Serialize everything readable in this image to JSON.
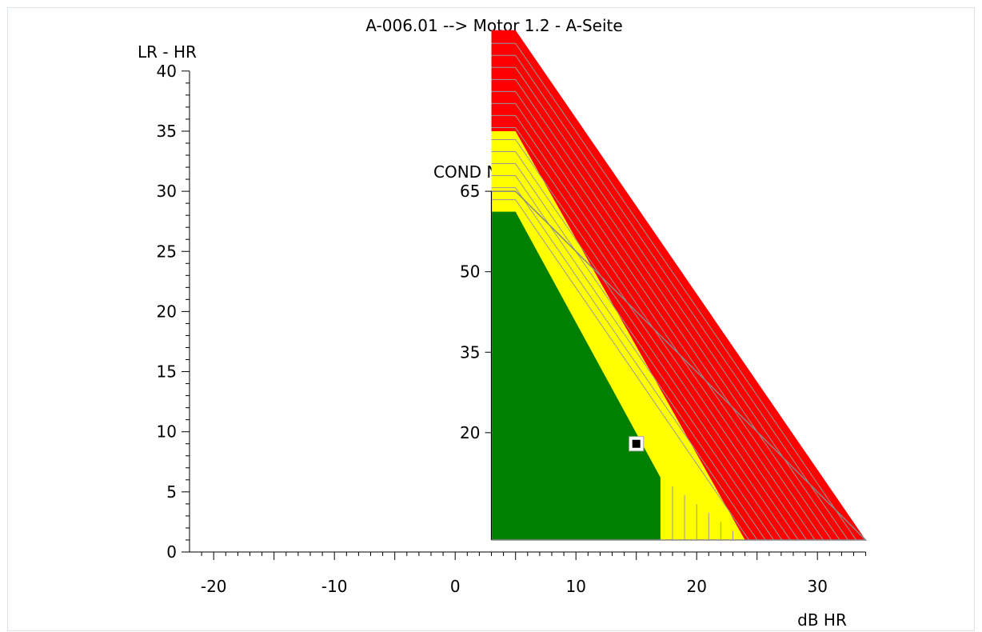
{
  "chart_data": {
    "type": "area",
    "title": "A-006.01 --> Motor 1.2 - A-Seite",
    "ylabel": "LR - HR",
    "xlabel": "dB HR",
    "xlim": [
      -22,
      34
    ],
    "ylim": [
      0,
      40
    ],
    "x_ticks": [
      -20,
      -10,
      0,
      10,
      20,
      30
    ],
    "y_ticks": [
      0,
      5,
      10,
      15,
      20,
      25,
      30,
      35,
      40
    ],
    "x_minor_step": 1,
    "y_minor_step": 1,
    "cond_axis": {
      "label": "COND Nr.",
      "ticks": [
        20,
        35,
        50,
        65
      ]
    },
    "zones": [
      {
        "name": "green",
        "color": "#008000",
        "polygon": [
          [
            3,
            1
          ],
          [
            3,
            28.3
          ],
          [
            5,
            28.3
          ],
          [
            17,
            6.2
          ],
          [
            17,
            1
          ]
        ]
      },
      {
        "name": "yellow",
        "color": "#ffff00",
        "polygon": [
          [
            3,
            28.3
          ],
          [
            3,
            30.3
          ],
          [
            5,
            30.3
          ],
          [
            24,
            1
          ],
          [
            17,
            1
          ],
          [
            17,
            6.2
          ],
          [
            5,
            28.3
          ]
        ]
      },
      {
        "name": "red",
        "color": "#ff0000",
        "polygon": [
          [
            3,
            30.3
          ],
          [
            3,
            30.3
          ],
          [
            3,
            35
          ],
          [
            3,
            30.3
          ]
        ]
      }
    ],
    "colors": {
      "green": "#008000",
      "yellow": "#ffff00",
      "red": "#ff0000",
      "band_line": "#999999",
      "boundary": "#888888",
      "axis": "#000000"
    },
    "marker": {
      "x": 15,
      "y": 9,
      "color": "#000000"
    }
  }
}
